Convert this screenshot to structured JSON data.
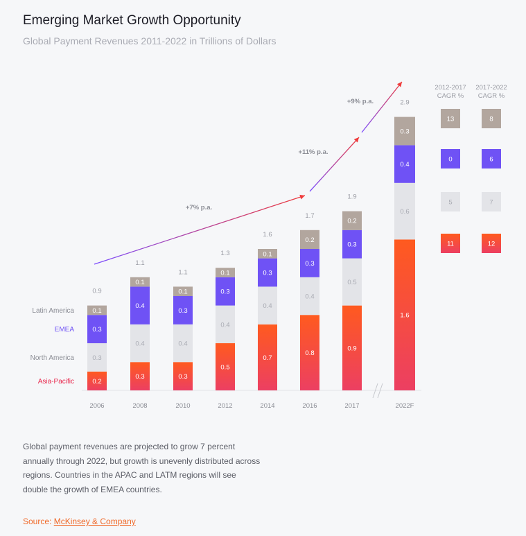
{
  "header": {
    "title": "Emerging Market Growth Opportunity",
    "subtitle": "Global Payment Revenues 2011-2022 in Trillions of Dollars"
  },
  "description": "Global payment revenues are projected to grow 7 percent annually through 2022, but growth is unevenly distributed across regions. Countries in the APAC and LATM regions will see double the growth of EMEA countries.",
  "source": {
    "label": "Source:",
    "link_text": "McKinsey & Company"
  },
  "colors": {
    "asia_pacific": "#ff5a1f",
    "asia_pacific_bottom": "#ec3f62",
    "north_america": "#e3e4e8",
    "emea": "#6f52f5",
    "latin_america": "#b2a69e",
    "trend_start": "#7b4dff",
    "trend_end": "#ef3b3b",
    "axis_text": "#8a8c94"
  },
  "chart_data": {
    "type": "bar",
    "stacked": true,
    "title": "Emerging Market Growth Opportunity",
    "subtitle": "Global Payment Revenues 2011-2022 in Trillions of Dollars",
    "categories": [
      "2006",
      "2008",
      "2010",
      "2012",
      "2014",
      "2016",
      "2017",
      "2022F"
    ],
    "totals": [
      "0.9",
      "1.1",
      "1.1",
      "1.3",
      "1.6",
      "1.7",
      "1.9",
      "2.9"
    ],
    "series": [
      {
        "name": "Asia-Pacific",
        "values": [
          0.2,
          0.3,
          0.3,
          0.5,
          0.7,
          0.8,
          0.9,
          1.6
        ]
      },
      {
        "name": "North America",
        "values": [
          0.3,
          0.4,
          0.4,
          0.4,
          0.4,
          0.4,
          0.5,
          0.6
        ]
      },
      {
        "name": "EMEA",
        "values": [
          0.3,
          0.4,
          0.3,
          0.3,
          0.3,
          0.3,
          0.3,
          0.4
        ]
      },
      {
        "name": "Latin America",
        "values": [
          0.1,
          0.1,
          0.1,
          0.1,
          0.1,
          0.2,
          0.2,
          0.3
        ]
      }
    ],
    "legend_labels": [
      "Latin America",
      "EMEA",
      "North America",
      "Asia-Pacific"
    ],
    "axis_break_after": "2017",
    "trend_annotations": [
      {
        "label": "+7% p.a.",
        "from": "2006",
        "to": "2016"
      },
      {
        "label": "+11% p.a.",
        "from": "2016",
        "to": "2017"
      },
      {
        "label": "+9% p.a.",
        "from": "2017",
        "to": "2022F"
      }
    ],
    "cagr_columns": [
      {
        "header_line1": "2012-2017",
        "header_line2": "CAGR %",
        "values": [
          13,
          0,
          5,
          11
        ]
      },
      {
        "header_line1": "2017-2022",
        "header_line2": "CAGR %",
        "values": [
          8,
          6,
          7,
          12
        ]
      }
    ],
    "cagr_row_series": [
      "Latin America",
      "EMEA",
      "North America",
      "Asia-Pacific"
    ]
  }
}
